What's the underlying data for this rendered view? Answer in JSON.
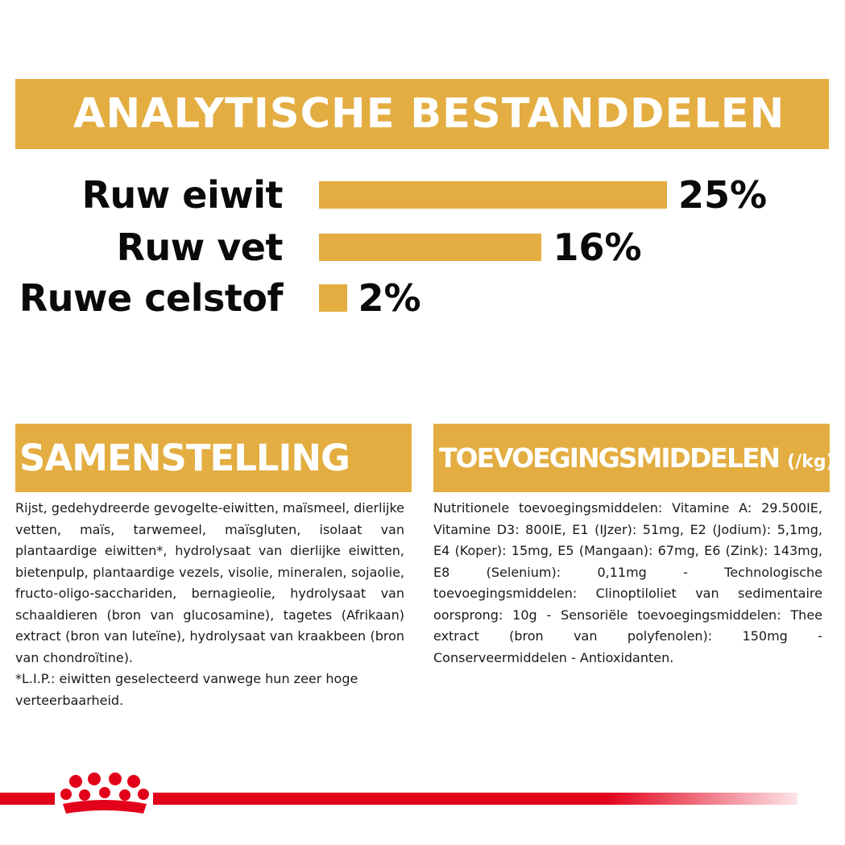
{
  "header": {
    "title": "ANALYTISCHE BESTANDDELEN"
  },
  "chart_data": {
    "type": "bar",
    "orientation": "horizontal",
    "title": "ANALYTISCHE BESTANDDELEN",
    "categories": [
      "Ruw eiwit",
      "Ruw vet",
      "Ruwe celstof"
    ],
    "values": [
      25,
      16,
      2
    ],
    "value_labels": [
      "25%",
      "16%",
      "2%"
    ],
    "unit": "%",
    "xlim": [
      0,
      25
    ],
    "grid": false,
    "bar_color": "#e3ad41"
  },
  "samenstelling": {
    "title": "SAMENSTELLING",
    "paragraphs": [
      "Rijst, gedehydreerde gevogelte-eiwitten, maïsmeel, dierlijke vetten, maïs, tarwemeel, maïsgluten, isolaat van plantaardige eiwitten*, hydrolysaat van dierlijke eiwitten, bietenpulp, plantaardige vezels, visolie, mineralen, sojaolie, fructo-oligo-sacchariden, bernagieolie, hydrolysaat van schaaldieren (bron van glucosamine), tagetes (Afrikaan) extract (bron van luteïne), hydrolysaat van kraakbeen (bron van chondroïtine).",
      "*L.I.P.: eiwitten geselecteerd vanwege hun zeer hoge verteerbaarheid."
    ]
  },
  "toevoegingsmiddelen": {
    "title": "TOEVOEGINGSMIDDELEN",
    "unit": "(/kg)",
    "text": "Nutritionele toevoegingsmiddelen: Vitamine A: 29.500IE, Vitamine D3: 800IE, E1 (IJzer): 51mg, E2 (Jodium): 5,1mg, E4 (Koper): 15mg, E5 (Mangaan): 67mg, E6 (Zink): 143mg, E8 (Selenium): 0,11mg - Technologische toevoegingsmiddelen: Clinoptiloliet van sedimentaire oorsprong: 10g - Sensoriële toevoegingsmiddelen: Thee extract (bron van polyfenolen): 150mg - Conserveermiddelen - Antioxidanten."
  },
  "brand": {
    "logo_icon": "royal-canin-crown-icon",
    "accent": "#e2001a"
  }
}
